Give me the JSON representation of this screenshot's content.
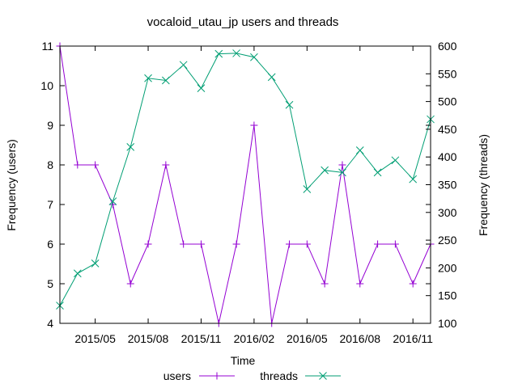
{
  "chart_data": {
    "type": "line",
    "title": "vocaloid_utau_jp users and threads",
    "xlabel": "Time",
    "ylabel": "Frequency (users)",
    "y2label": "Frequency (threads)",
    "x": [
      "2015-03",
      "2015-04",
      "2015-05",
      "2015-06",
      "2015-07",
      "2015-08",
      "2015-09",
      "2015-10",
      "2015-11",
      "2015-12",
      "2016-01",
      "2016-02",
      "2016-03",
      "2016-04",
      "2016-05",
      "2016-06",
      "2016-07",
      "2016-08",
      "2016-09",
      "2016-10",
      "2016-11",
      "2016-12"
    ],
    "xlim": [
      "2015-03",
      "2016-12"
    ],
    "xticks": [
      {
        "x": "2015-05",
        "label": "2015/05"
      },
      {
        "x": "2015-08",
        "label": "2015/08"
      },
      {
        "x": "2015-11",
        "label": "2015/11"
      },
      {
        "x": "2016-02",
        "label": "2016/02"
      },
      {
        "x": "2016-05",
        "label": "2016/05"
      },
      {
        "x": "2016-08",
        "label": "2016/08"
      },
      {
        "x": "2016-11",
        "label": "2016/11"
      }
    ],
    "ylim": [
      4,
      11
    ],
    "yticks": [
      4,
      5,
      6,
      7,
      8,
      9,
      10,
      11
    ],
    "y2lim": [
      100,
      600
    ],
    "y2ticks": [
      100,
      150,
      200,
      250,
      300,
      350,
      400,
      450,
      500,
      550,
      600
    ],
    "grid": false,
    "legend": "bottom",
    "series": [
      {
        "name": "users",
        "axis": "y",
        "color": "#9400d3",
        "marker": "plus",
        "values": [
          11,
          8,
          8,
          7,
          5,
          6,
          8,
          6,
          6,
          4,
          6,
          9,
          4,
          6,
          6,
          5,
          8,
          5,
          6,
          6,
          5,
          6
        ]
      },
      {
        "name": "threads",
        "axis": "y2",
        "color": "#009e73",
        "marker": "cross",
        "values": [
          132,
          190,
          208,
          320,
          418,
          542,
          538,
          566,
          524,
          586,
          587,
          580,
          544,
          494,
          342,
          376,
          372,
          412,
          372,
          394,
          360,
          468
        ]
      }
    ]
  }
}
